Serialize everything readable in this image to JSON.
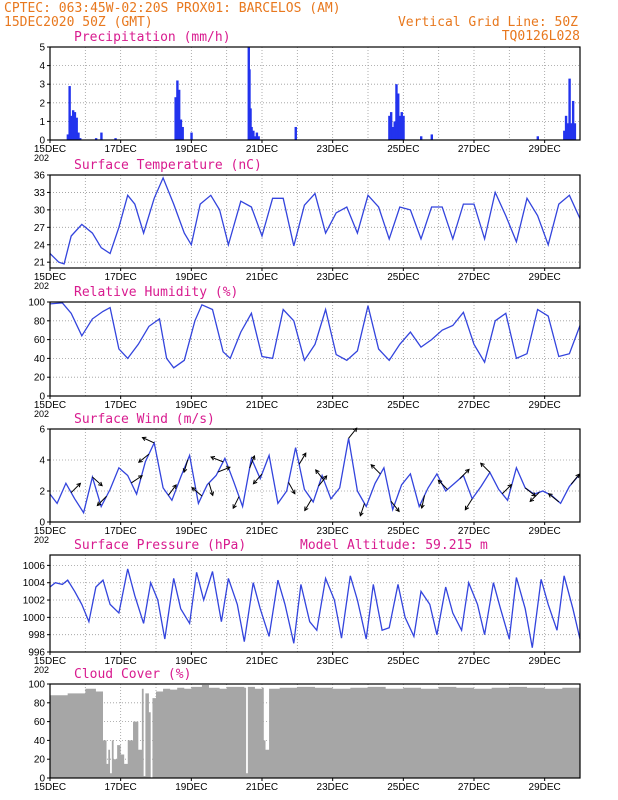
{
  "header": {
    "line1_left": "CPTEC:  063:45W-02:20S  PROX01: BARCELOS (AM)",
    "line2_left": "15DEC2020 50Z (GMT)",
    "line2_right": "Vertical Grid Line: 50Z",
    "line3_right": "TQ0126L028"
  },
  "x_ticks": [
    "15DEC",
    "17DEC",
    "19DEC",
    "21DEC",
    "23DEC",
    "25DEC",
    "27DEC",
    "29DEC"
  ],
  "x_cut_label": "202",
  "colors": {
    "line": "#3344dd",
    "bar": "#2233ee",
    "cloud": "#a6a6a6",
    "header": "#e8781e",
    "title": "#d81b8f"
  },
  "chart_data": [
    {
      "type": "bar",
      "title": "Precipitation (mm/h)",
      "ylim": [
        0,
        5
      ],
      "yticks": [
        "0",
        "1",
        "2",
        "3",
        "4",
        "5"
      ],
      "xlim": [
        0,
        15
      ],
      "x": [
        0.5,
        0.55,
        0.6,
        0.65,
        0.7,
        0.75,
        0.8,
        0.85,
        1.3,
        1.45,
        1.85,
        3.55,
        3.6,
        3.65,
        3.7,
        3.75,
        4.0,
        5.62,
        5.64,
        5.67,
        5.7,
        5.75,
        5.8,
        5.85,
        5.9,
        6.95,
        9.6,
        9.65,
        9.7,
        9.75,
        9.8,
        9.85,
        9.9,
        9.95,
        10.0,
        10.5,
        10.8,
        13.8,
        14.55,
        14.6,
        14.65,
        14.7,
        14.75,
        14.8,
        14.85
      ],
      "values": [
        0.3,
        2.9,
        1.3,
        1.6,
        1.5,
        1.2,
        0.4,
        0.1,
        0.1,
        0.4,
        0.1,
        2.3,
        3.2,
        2.7,
        1.1,
        0.7,
        0.4,
        5.0,
        3.8,
        1.7,
        0.7,
        0.5,
        0.2,
        0.4,
        0.2,
        0.7,
        1.3,
        1.5,
        0.7,
        1.0,
        3.0,
        2.5,
        1.3,
        1.5,
        1.3,
        0.2,
        0.3,
        0.2,
        0.5,
        1.3,
        0.9,
        3.3,
        0.9,
        2.1,
        0.9
      ]
    },
    {
      "type": "line",
      "title": "Surface Temperature (nC)",
      "ylim": [
        20,
        36
      ],
      "yticks": [
        "21",
        "24",
        "27",
        "30",
        "33",
        "36"
      ],
      "ytick_values": [
        21,
        24,
        27,
        30,
        33,
        36
      ],
      "xlim": [
        0,
        15
      ],
      "x": [
        0,
        0.25,
        0.4,
        0.6,
        0.9,
        1.2,
        1.45,
        1.7,
        1.95,
        2.2,
        2.4,
        2.65,
        2.95,
        3.2,
        3.5,
        3.8,
        4.0,
        4.25,
        4.55,
        4.8,
        5.05,
        5.4,
        5.7,
        6.0,
        6.3,
        6.6,
        6.9,
        7.2,
        7.5,
        7.8,
        8.1,
        8.4,
        8.7,
        9.0,
        9.3,
        9.6,
        9.9,
        10.2,
        10.5,
        10.8,
        11.1,
        11.4,
        11.7,
        12.0,
        12.3,
        12.6,
        12.9,
        13.2,
        13.5,
        13.8,
        14.1,
        14.4,
        14.7,
        15.0
      ],
      "values": [
        22.5,
        21.0,
        20.7,
        25.5,
        27.5,
        26.0,
        23.5,
        22.5,
        27.0,
        32.5,
        31.0,
        26.0,
        32.0,
        35.5,
        31.0,
        26.0,
        24.0,
        31.0,
        32.5,
        30.0,
        24.0,
        31.5,
        30.5,
        25.5,
        32.0,
        32.0,
        23.8,
        30.8,
        32.8,
        26.0,
        29.5,
        30.5,
        26.0,
        32.5,
        30.5,
        25.0,
        30.5,
        30.0,
        25.0,
        30.5,
        30.5,
        25.0,
        31.0,
        31.0,
        25.0,
        33.0,
        29.0,
        24.5,
        32.0,
        29.0,
        24.0,
        31.0,
        32.5,
        28.5
      ]
    },
    {
      "type": "line",
      "title": "Relative Humidity (%)",
      "ylim": [
        0,
        100
      ],
      "yticks": [
        "0",
        "20",
        "40",
        "60",
        "80",
        "100"
      ],
      "ytick_values": [
        0,
        20,
        40,
        60,
        80,
        100
      ],
      "xlim": [
        0,
        15
      ],
      "x": [
        0,
        0.35,
        0.6,
        0.9,
        1.2,
        1.5,
        1.7,
        1.95,
        2.2,
        2.5,
        2.8,
        3.1,
        3.3,
        3.5,
        3.8,
        4.1,
        4.3,
        4.6,
        4.9,
        5.1,
        5.4,
        5.7,
        6.0,
        6.3,
        6.6,
        6.9,
        7.2,
        7.5,
        7.8,
        8.1,
        8.4,
        8.7,
        9.0,
        9.3,
        9.6,
        9.9,
        10.2,
        10.5,
        10.8,
        11.1,
        11.4,
        11.7,
        12.0,
        12.3,
        12.6,
        12.9,
        13.2,
        13.5,
        13.8,
        14.1,
        14.4,
        14.7,
        15.0
      ],
      "values": [
        98,
        99,
        88,
        64,
        82,
        90,
        94,
        50,
        40,
        55,
        74,
        82,
        40,
        30,
        38,
        80,
        97,
        92,
        47,
        40,
        68,
        88,
        42,
        40,
        92,
        80,
        38,
        55,
        92,
        44,
        38,
        48,
        96,
        50,
        38,
        55,
        68,
        52,
        60,
        70,
        75,
        89,
        55,
        36,
        80,
        88,
        40,
        45,
        92,
        85,
        42,
        45,
        75
      ]
    },
    {
      "type": "line",
      "title": "Surface Wind (m/s)",
      "ylim": [
        0,
        6
      ],
      "yticks": [
        "0",
        "2",
        "4",
        "6"
      ],
      "ytick_values": [
        0,
        2,
        4,
        6
      ],
      "xlim": [
        0,
        15
      ],
      "x": [
        0,
        0.2,
        0.45,
        0.7,
        0.95,
        1.2,
        1.45,
        1.7,
        1.95,
        2.2,
        2.45,
        2.7,
        2.95,
        3.2,
        3.45,
        3.7,
        3.95,
        4.2,
        4.45,
        4.7,
        4.95,
        5.2,
        5.45,
        5.7,
        5.95,
        6.2,
        6.45,
        6.7,
        6.95,
        7.2,
        7.45,
        7.7,
        7.95,
        8.2,
        8.45,
        8.7,
        8.95,
        9.2,
        9.45,
        9.7,
        9.95,
        10.2,
        10.45,
        10.7,
        10.95,
        11.2,
        11.45,
        11.7,
        11.95,
        12.2,
        12.45,
        12.7,
        12.95,
        13.2,
        13.45,
        13.7,
        13.95,
        14.2,
        14.45,
        14.7,
        15.0
      ],
      "values": [
        1.8,
        1.2,
        2.5,
        1.5,
        0.6,
        2.9,
        1.0,
        2.1,
        3.5,
        3.0,
        1.8,
        3.9,
        5.1,
        2.2,
        1.4,
        2.9,
        4.3,
        1.2,
        2.4,
        3.0,
        4.1,
        2.6,
        1.0,
        4.1,
        2.8,
        4.3,
        1.2,
        2.0,
        4.8,
        2.1,
        1.3,
        3.0,
        1.5,
        2.2,
        5.4,
        2.0,
        1.0,
        2.5,
        3.5,
        0.8,
        2.4,
        3.1,
        1.0,
        2.2,
        3.1,
        2.0,
        2.5,
        3.0,
        1.5,
        2.3,
        3.2,
        2.1,
        1.4,
        3.5,
        2.2,
        1.8,
        2.0,
        1.7,
        1.2,
        2.3,
        3.1
      ],
      "wind_arrows_x": [
        0.6,
        1.2,
        1.6,
        2.3,
        2.8,
        2.95,
        3.35,
        3.9,
        4.3,
        4.5,
        4.75,
        4.9,
        5.35,
        5.65,
        6.0,
        6.75,
        7.05,
        7.4,
        7.6,
        7.75,
        8.45,
        8.9,
        9.35,
        9.65,
        10.6,
        11.25,
        11.6,
        11.95,
        12.45,
        12.8,
        13.45,
        13.85,
        14.4,
        14.75
      ],
      "wind_arrows_u": [
        1.0,
        0.9,
        -1.0,
        1.2,
        -1.0,
        -1.3,
        0.6,
        -0.3,
        -1.2,
        0.3,
        1.5,
        -1.5,
        -0.5,
        0.4,
        -0.7,
        0.5,
        0.6,
        -0.6,
        0.8,
        -0.8,
        0.8,
        -0.3,
        -0.8,
        0.8,
        -0.2,
        -0.8,
        0.8,
        -0.5,
        -0.8,
        0.8,
        1.0,
        -0.8,
        -1.0,
        0.8
      ],
      "wind_arrows_v": [
        1.0,
        -0.8,
        -1.0,
        0.8,
        -0.8,
        0.6,
        0.8,
        -1.0,
        1.0,
        -1.0,
        0.6,
        0.6,
        -1.0,
        1.0,
        -0.8,
        -0.9,
        1.0,
        -1.0,
        1.0,
        1.0,
        1.0,
        -0.9,
        0.8,
        -1.0,
        -0.9,
        0.8,
        0.8,
        -0.8,
        0.8,
        0.8,
        -0.8,
        -0.8,
        0.8,
        1.0
      ]
    },
    {
      "type": "line",
      "title": "Surface Pressure (hPa)",
      "annotation": "Model Altitude: 59.215 m",
      "ylim": [
        996,
        1007.2
      ],
      "yticks": [
        "996",
        "998",
        "1000",
        "1002",
        "1004",
        "1006"
      ],
      "ytick_values": [
        996,
        998,
        1000,
        1002,
        1004,
        1006
      ],
      "xlim": [
        0,
        15
      ],
      "x": [
        0,
        0.15,
        0.35,
        0.5,
        0.7,
        0.9,
        1.1,
        1.3,
        1.5,
        1.7,
        1.95,
        2.2,
        2.4,
        2.65,
        2.85,
        3.05,
        3.25,
        3.5,
        3.7,
        3.95,
        4.15,
        4.35,
        4.6,
        4.85,
        5.05,
        5.3,
        5.5,
        5.75,
        5.95,
        6.2,
        6.45,
        6.65,
        6.9,
        7.1,
        7.35,
        7.55,
        7.8,
        8.05,
        8.25,
        8.5,
        8.7,
        8.95,
        9.15,
        9.4,
        9.6,
        9.85,
        10.05,
        10.3,
        10.5,
        10.75,
        10.95,
        11.2,
        11.4,
        11.65,
        11.85,
        12.1,
        12.3,
        12.55,
        12.75,
        13.0,
        13.2,
        13.45,
        13.65,
        13.9,
        14.1,
        14.35,
        14.55,
        14.8,
        15.0
      ],
      "values": [
        1003.5,
        1004.0,
        1003.8,
        1004.3,
        1003.0,
        1001.5,
        999.5,
        1003.5,
        1004.3,
        1001.5,
        1000.5,
        1005.6,
        1002.5,
        999.3,
        1004.0,
        1002.0,
        997.5,
        1004.5,
        1001.0,
        999.3,
        1005.2,
        1002.0,
        1005.3,
        999.5,
        1004.5,
        1001.5,
        997.2,
        1004.0,
        1001.0,
        997.8,
        1004.3,
        1001.5,
        997.0,
        1003.8,
        999.5,
        998.5,
        1004.5,
        1002.0,
        997.6,
        1004.8,
        1002.0,
        997.5,
        1003.8,
        998.5,
        998.8,
        1003.8,
        1000.0,
        997.8,
        1003.0,
        1001.5,
        998.0,
        1003.5,
        1000.5,
        998.5,
        1004.0,
        1001.5,
        998.0,
        1004.0,
        1001.0,
        997.5,
        1004.6,
        1001.0,
        996.5,
        1004.4,
        1001.5,
        998.5,
        1004.8,
        1001.0,
        997.5
      ]
    },
    {
      "type": "area",
      "title": "Cloud Cover (%)",
      "ylim": [
        0,
        100
      ],
      "yticks": [
        "0",
        "20",
        "40",
        "60",
        "80",
        "100"
      ],
      "ytick_values": [
        0,
        20,
        40,
        60,
        80,
        100
      ],
      "xlim": [
        0,
        15
      ],
      "x": [
        0,
        0.5,
        1.0,
        1.3,
        1.5,
        1.6,
        1.65,
        1.7,
        1.75,
        1.8,
        1.9,
        2.0,
        2.1,
        2.2,
        2.35,
        2.5,
        2.6,
        2.65,
        2.7,
        2.8,
        2.85,
        2.9,
        3.0,
        3.2,
        3.4,
        3.6,
        3.8,
        4.0,
        4.3,
        4.5,
        4.8,
        5.0,
        5.5,
        5.55,
        5.6,
        5.8,
        6.0,
        6.05,
        6.1,
        6.2,
        6.5,
        7.0,
        7.5,
        8.0,
        8.5,
        9.0,
        9.5,
        10.0,
        10.5,
        11.0,
        11.5,
        12.0,
        12.5,
        13.0,
        13.5,
        14.0,
        14.5,
        15.0
      ],
      "values": [
        88,
        90,
        95,
        92,
        40,
        15,
        30,
        5,
        40,
        20,
        35,
        25,
        15,
        40,
        60,
        30,
        95,
        2,
        90,
        70,
        0,
        85,
        92,
        95,
        94,
        96,
        95,
        97,
        99,
        96,
        95,
        97,
        96,
        5,
        97,
        95,
        96,
        40,
        30,
        95,
        96,
        97,
        96,
        95,
        96,
        97,
        95,
        96,
        95,
        97,
        96,
        95,
        96,
        97,
        96,
        95,
        96,
        97
      ]
    }
  ]
}
